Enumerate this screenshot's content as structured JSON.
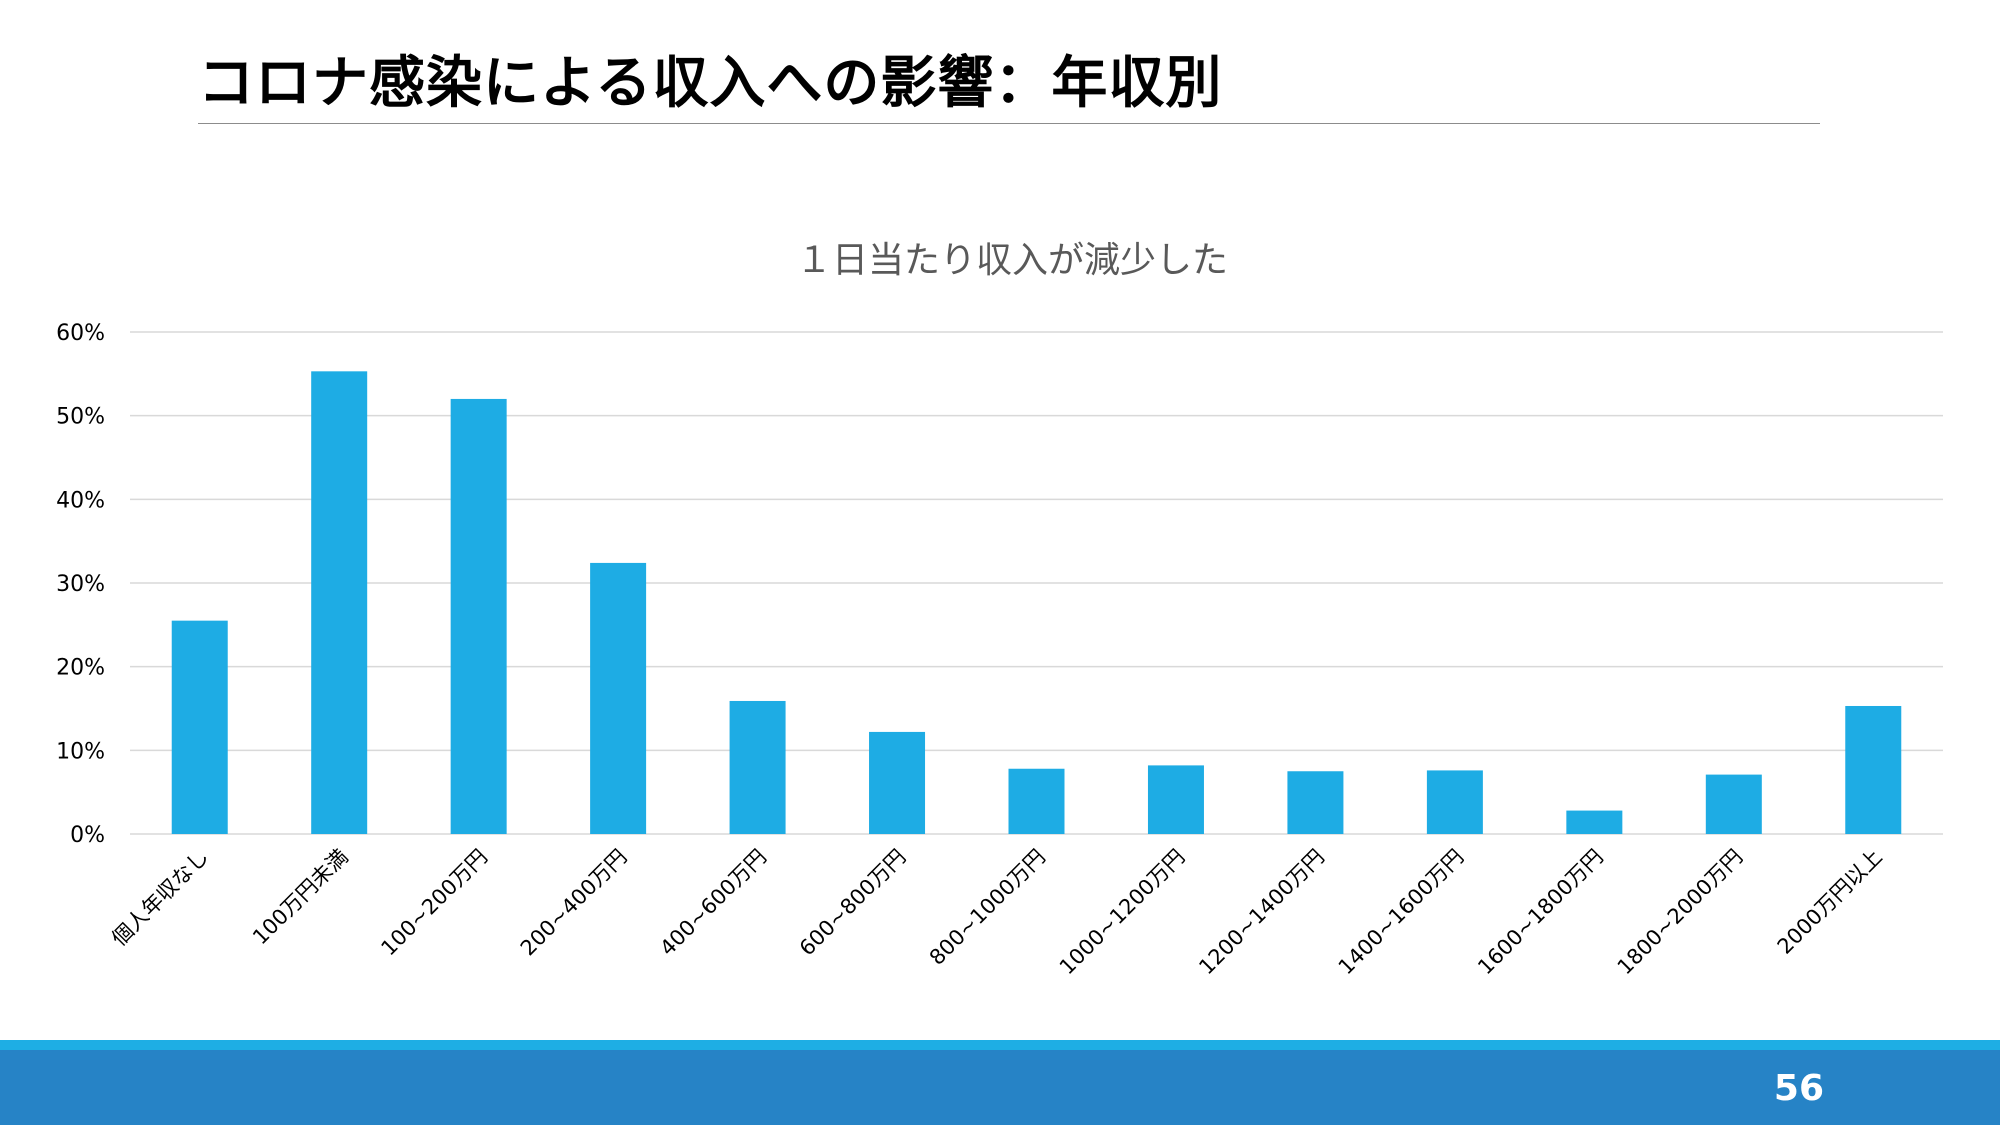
{
  "slide": {
    "title": "コロナ感染による収入への影響：年収別",
    "page_number": "56"
  },
  "colors": {
    "bar": "#1eace4",
    "footer_band": "#2683c6",
    "footer_accent": "#1eaee4",
    "grid": "#d9d9d9",
    "axis_text": "#000000",
    "chart_title": "#595959"
  },
  "chart_data": {
    "type": "bar",
    "title": "１日当たり収入が減少した",
    "xlabel": "",
    "ylabel": "",
    "ylim": [
      0,
      60
    ],
    "y_ticks": [
      0,
      10,
      20,
      30,
      40,
      50,
      60
    ],
    "y_tick_labels": [
      "0%",
      "10%",
      "20%",
      "30%",
      "40%",
      "50%",
      "60%"
    ],
    "grid": true,
    "legend": "none",
    "categories": [
      "個人年収なし",
      "100万円未満",
      "100~200万円",
      "200~400万円",
      "400~600万円",
      "600~800万円",
      "800~1000万円",
      "1000~1200万円",
      "1200~1400万円",
      "1400~1600万円",
      "1600~1800万円",
      "1800~2000万円",
      "2000万円以上"
    ],
    "values": [
      25.5,
      55.3,
      52.0,
      32.4,
      15.9,
      12.2,
      7.8,
      8.2,
      7.5,
      7.6,
      2.8,
      7.1,
      15.3
    ]
  }
}
